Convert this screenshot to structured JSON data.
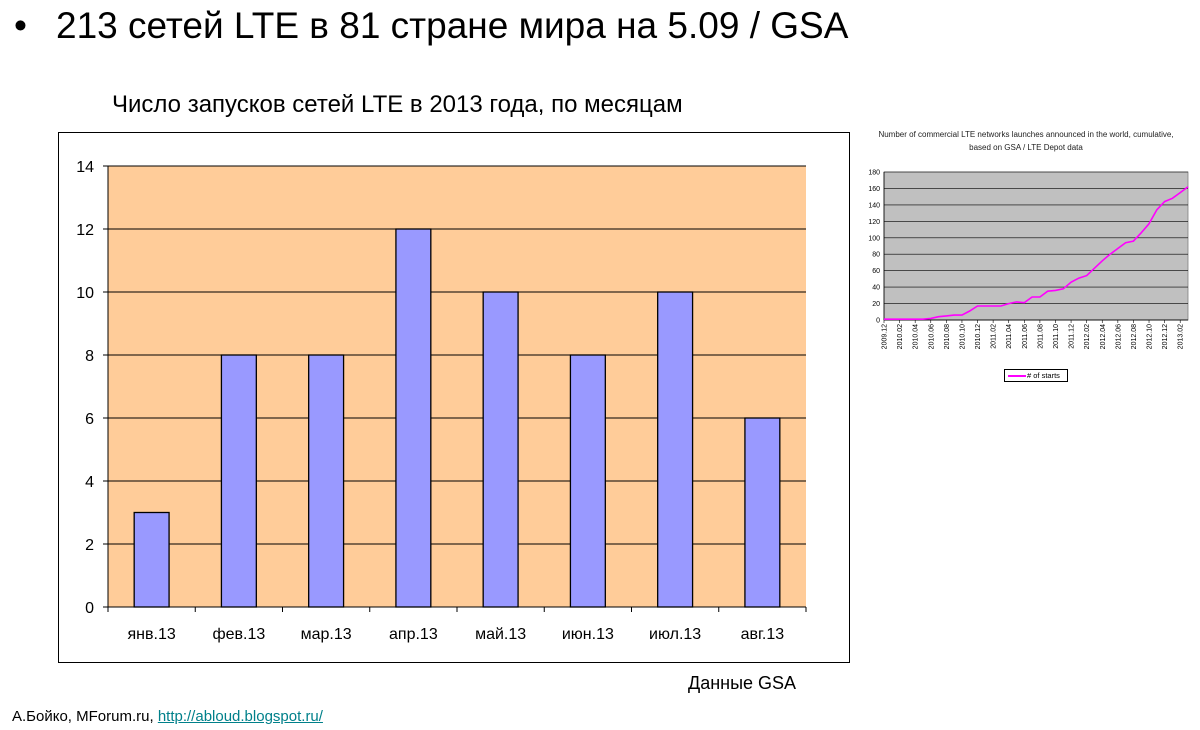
{
  "slide": {
    "bullet": "•",
    "title": "213 сетей LTE в 81 стране мира на 5.09 / GSA",
    "source_note": "Данные GSA",
    "author": "А.Бойко, MForum.ru, ",
    "author_link": "http://abloud.blogspot.ru/"
  },
  "colors": {
    "plot_background": "#ffcc99",
    "bar_fill": "#9999ff",
    "inset_plot_background": "#c0c0c0",
    "inset_line": "#ff00ff",
    "link": "#00808a"
  },
  "chart_data": [
    {
      "type": "bar",
      "title": "Число запусков сетей LTE в 2013 года, по месяцам",
      "categories": [
        "янв.13",
        "фев.13",
        "мар.13",
        "апр.13",
        "май.13",
        "июн.13",
        "июл.13",
        "авг.13"
      ],
      "values": [
        3,
        8,
        8,
        12,
        10,
        8,
        10,
        6
      ],
      "ylim": [
        0,
        14
      ],
      "yticks": [
        "0",
        "2",
        "4",
        "6",
        "8",
        "10",
        "12",
        "14"
      ],
      "grid": true,
      "legend": "none"
    },
    {
      "type": "line",
      "title": "Number of commercial LTE networks launches announced in the world, cumulative, based on GSA / LTE Depot data",
      "x": [
        "2009.12",
        "2010.01",
        "2010.02",
        "2010.03",
        "2010.04",
        "2010.05",
        "2010.06",
        "2010.07",
        "2010.08",
        "2010.09",
        "2010.10",
        "2010.11",
        "2010.12",
        "2011.01",
        "2011.02",
        "2011.03",
        "2011.04",
        "2011.05",
        "2011.06",
        "2011.07",
        "2011.08",
        "2011.09",
        "2011.10",
        "2011.11",
        "2011.12",
        "2012.01",
        "2012.02",
        "2012.03",
        "2012.04",
        "2012.05",
        "2012.06",
        "2012.07",
        "2012.08",
        "2012.09",
        "2012.10",
        "2012.11",
        "2012.12",
        "2013.01",
        "2013.02",
        "2013.03"
      ],
      "xticks": [
        "2009.12",
        "2010.02",
        "2010.04",
        "2010.06",
        "2010.08",
        "2010.10",
        "2010.12",
        "2011.02",
        "2011.04",
        "2011.06",
        "2011.08",
        "2011.10",
        "2011.12",
        "2012.02",
        "2012.04",
        "2012.06",
        "2012.08",
        "2012.10",
        "2012.12",
        "2013.02"
      ],
      "series": [
        {
          "name": "# of starts",
          "values": [
            1,
            1,
            1,
            1,
            1,
            1,
            2,
            4,
            5,
            6,
            6,
            11,
            17,
            17,
            17,
            17,
            20,
            22,
            21,
            28,
            28,
            35,
            36,
            38,
            46,
            51,
            54,
            63,
            72,
            80,
            87,
            94,
            96,
            106,
            117,
            134,
            144,
            148,
            155,
            162
          ]
        }
      ],
      "ylim": [
        0,
        180
      ],
      "yticks": [
        "0",
        "20",
        "40",
        "60",
        "80",
        "100",
        "120",
        "140",
        "160",
        "180"
      ],
      "grid": true,
      "legend": "bottom"
    }
  ]
}
